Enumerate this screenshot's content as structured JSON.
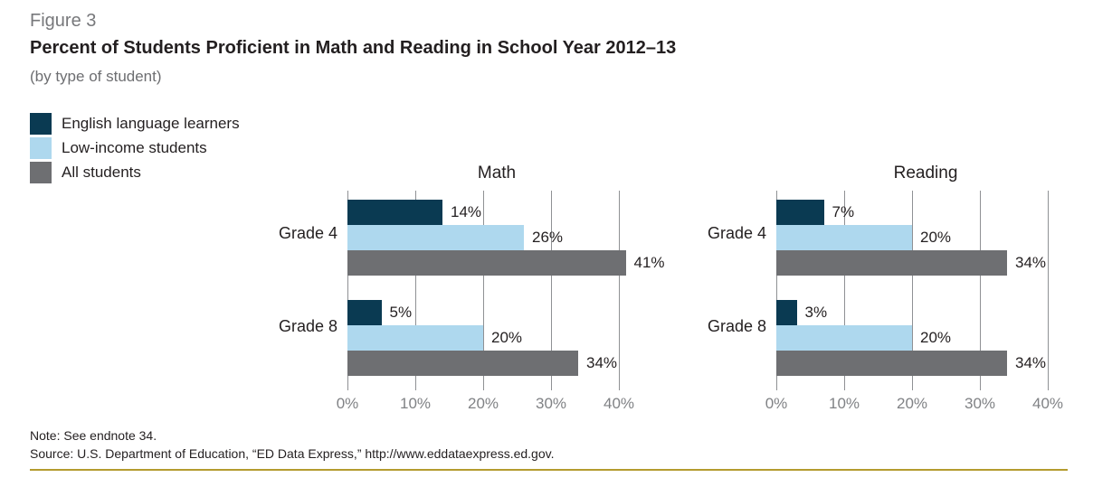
{
  "figure": {
    "label": "Figure 3",
    "title": "Percent of Students Proficient in Math and Reading in School Year 2012–13",
    "subtitle": "(by type of student)"
  },
  "legend": {
    "items": [
      {
        "label": "English language learners",
        "color": "#0a3a52"
      },
      {
        "label": "Low-income students",
        "color": "#aed8ee"
      },
      {
        "label": "All students",
        "color": "#6e6f72"
      }
    ]
  },
  "chart_data": [
    {
      "type": "bar",
      "orientation": "horizontal",
      "title": "Math",
      "categories": [
        "Grade 4",
        "Grade 8"
      ],
      "series": [
        {
          "name": "English language learners",
          "color": "#0a3a52",
          "values": [
            14,
            5
          ]
        },
        {
          "name": "Low-income students",
          "color": "#aed8ee",
          "values": [
            26,
            20
          ]
        },
        {
          "name": "All students",
          "color": "#6e6f72",
          "values": [
            41,
            34
          ]
        }
      ],
      "value_suffix": "%",
      "xlim": [
        0,
        40
      ],
      "x_tick_values": [
        0,
        10,
        20,
        30,
        40
      ],
      "x_tick_labels": [
        "0%",
        "10%",
        "20%",
        "30%",
        "40%"
      ],
      "grid": true,
      "gridline_color": "#8f9194",
      "legend_position": "top-left-shared"
    },
    {
      "type": "bar",
      "orientation": "horizontal",
      "title": "Reading",
      "categories": [
        "Grade 4",
        "Grade 8"
      ],
      "series": [
        {
          "name": "English language learners",
          "color": "#0a3a52",
          "values": [
            7,
            3
          ]
        },
        {
          "name": "Low-income students",
          "color": "#aed8ee",
          "values": [
            20,
            20
          ]
        },
        {
          "name": "All students",
          "color": "#6e6f72",
          "values": [
            34,
            34
          ]
        }
      ],
      "value_suffix": "%",
      "xlim": [
        0,
        40
      ],
      "x_tick_values": [
        0,
        10,
        20,
        30,
        40
      ],
      "x_tick_labels": [
        "0%",
        "10%",
        "20%",
        "30%",
        "40%"
      ],
      "grid": true,
      "gridline_color": "#8f9194",
      "legend_position": "top-left-shared"
    }
  ],
  "footer": {
    "note": "Note: See endnote 34.",
    "source": "Source: U.S. Department of Education, “ED Data Express,” http://www.eddataexpress.ed.gov.",
    "rule_color": "#b49b2e"
  }
}
